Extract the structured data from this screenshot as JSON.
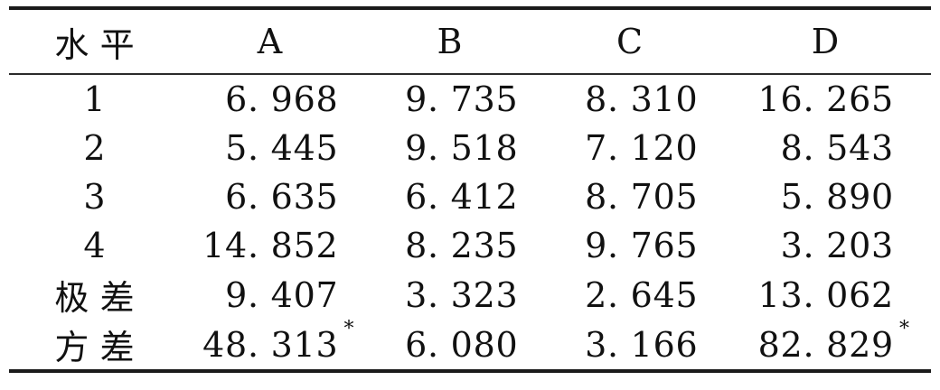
{
  "table": {
    "columns": [
      {
        "label": "水平"
      },
      {
        "label": "A"
      },
      {
        "label": "B"
      },
      {
        "label": "C"
      },
      {
        "label": "D"
      }
    ],
    "rows": [
      {
        "label": "1",
        "cells": [
          {
            "text": "6. 968"
          },
          {
            "text": "9. 735"
          },
          {
            "text": "8. 310"
          },
          {
            "text": "16. 265"
          }
        ]
      },
      {
        "label": "2",
        "cells": [
          {
            "text": "5. 445"
          },
          {
            "text": "9. 518"
          },
          {
            "text": "7. 120"
          },
          {
            "text": "8. 543"
          }
        ]
      },
      {
        "label": "3",
        "cells": [
          {
            "text": "6. 635"
          },
          {
            "text": "6. 412"
          },
          {
            "text": "8. 705"
          },
          {
            "text": "5. 890"
          }
        ]
      },
      {
        "label": "4",
        "cells": [
          {
            "text": "14. 852"
          },
          {
            "text": "8. 235"
          },
          {
            "text": "9. 765"
          },
          {
            "text": "3. 203"
          }
        ]
      },
      {
        "label": "极差",
        "cells": [
          {
            "text": "9. 407"
          },
          {
            "text": "3. 323"
          },
          {
            "text": "2. 645"
          },
          {
            "text": "13. 062"
          }
        ]
      },
      {
        "label": "方差",
        "cells": [
          {
            "text": "48. 313",
            "star": "*"
          },
          {
            "text": "6. 080"
          },
          {
            "text": "3. 166"
          },
          {
            "text": "82. 829",
            "star": "*"
          }
        ]
      }
    ],
    "colors": {
      "text": "#111111",
      "rule": "#1a1a1a",
      "background": "#ffffff"
    }
  }
}
